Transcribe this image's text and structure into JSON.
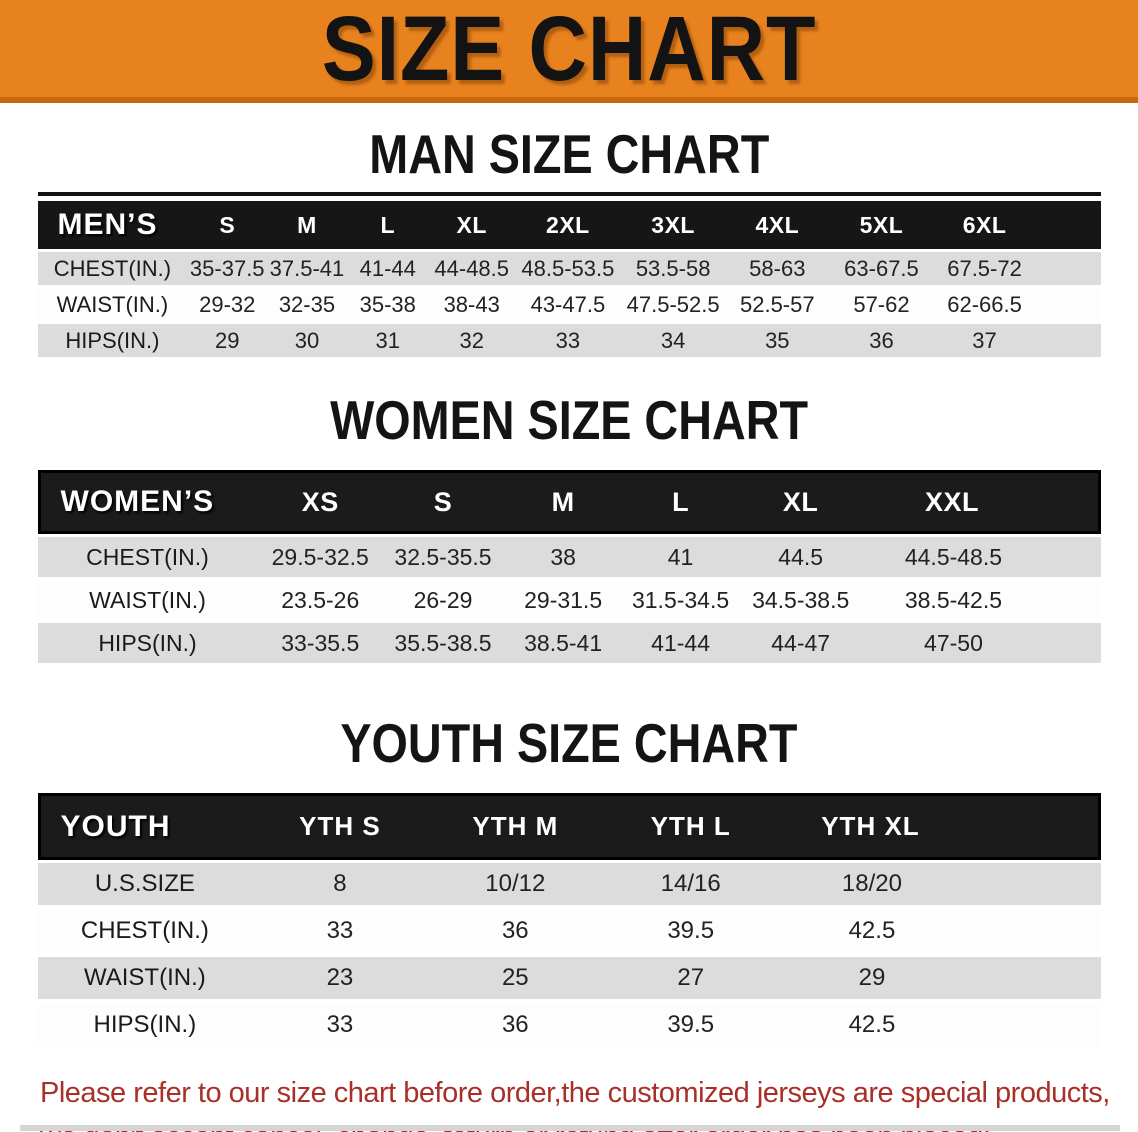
{
  "banner": {
    "title": "SIZE CHART"
  },
  "colors": {
    "banner_bg": "#E8821E",
    "banner_border": "#C9690F",
    "header_bar": "#161616",
    "row_stripe": "#DCDCDC",
    "footer_text": "#A93029"
  },
  "sections": [
    {
      "id": "men",
      "title": "MAN SIZE CHART",
      "header_label": "MEN’S",
      "columns": [
        "S",
        "M",
        "L",
        "XL",
        "2XL",
        "3XL",
        "4XL",
        "5XL",
        "6XL"
      ],
      "rows": [
        {
          "label": "CHEST(IN.)",
          "values": [
            "35-37.5",
            "37.5-41",
            "41-44",
            "44-48.5",
            "48.5-53.5",
            "53.5-58",
            "58-63",
            "63-67.5",
            "67.5-72"
          ]
        },
        {
          "label": "WAIST(IN.)",
          "values": [
            "29-32",
            "32-35",
            "35-38",
            "38-43",
            "43-47.5",
            "47.5-52.5",
            "52.5-57",
            "57-62",
            "62-66.5"
          ]
        },
        {
          "label": "HIPS(IN.)",
          "values": [
            "29",
            "30",
            "31",
            "32",
            "33",
            "34",
            "35",
            "36",
            "37"
          ]
        }
      ]
    },
    {
      "id": "women",
      "title": "WOMEN SIZE CHART",
      "header_label": "WOMEN’S",
      "columns": [
        "XS",
        "S",
        "M",
        "L",
        "XL",
        "XXL"
      ],
      "rows": [
        {
          "label": "CHEST(IN.)",
          "values": [
            "29.5-32.5",
            "32.5-35.5",
            "38",
            "41",
            "44.5",
            "44.5-48.5"
          ]
        },
        {
          "label": "WAIST(IN.)",
          "values": [
            "23.5-26",
            "26-29",
            "29-31.5",
            "31.5-34.5",
            "34.5-38.5",
            "38.5-42.5"
          ]
        },
        {
          "label": "HIPS(IN.)",
          "values": [
            "33-35.5",
            "35.5-38.5",
            "38.5-41",
            "41-44",
            "44-47",
            "47-50"
          ]
        }
      ]
    },
    {
      "id": "youth",
      "title": "YOUTH SIZE CHART",
      "header_label": "YOUTH",
      "columns": [
        "YTH S",
        "YTH M",
        "YTH L",
        "YTH XL"
      ],
      "rows": [
        {
          "label": "U.S.SIZE",
          "values": [
            "8",
            "10/12",
            "14/16",
            "18/20"
          ]
        },
        {
          "label": "CHEST(IN.)",
          "values": [
            "33",
            "36",
            "39.5",
            "42.5"
          ]
        },
        {
          "label": "WAIST(IN.)",
          "values": [
            "23",
            "25",
            "27",
            "29"
          ]
        },
        {
          "label": "HIPS(IN.)",
          "values": [
            "33",
            "36",
            "39.5",
            "42.5"
          ]
        }
      ]
    }
  ],
  "footer": {
    "lines": [
      "Please refer to our size chart before order,the customized jerseys are special products,",
      "we don't accept cancel, change, teturn or refund after order has been placed!"
    ]
  }
}
